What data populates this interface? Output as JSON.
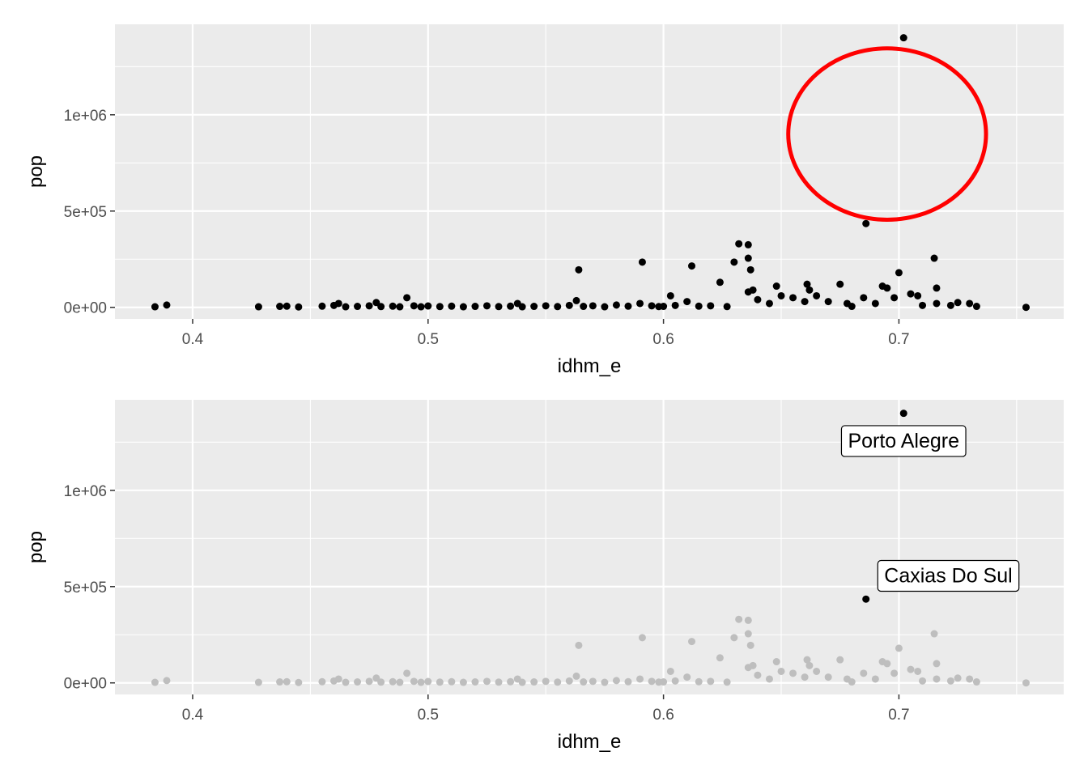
{
  "chart_data": [
    {
      "type": "scatter",
      "title": "",
      "xlabel": "idhm_e",
      "ylabel": "pop",
      "xlim": [
        0.367,
        0.77
      ],
      "ylim": [
        -60000,
        1470000
      ],
      "x_ticks": [
        0.4,
        0.5,
        0.6,
        0.7
      ],
      "x_tick_labels": [
        "0.4",
        "0.5",
        "0.6",
        "0.7"
      ],
      "y_ticks": [
        0,
        500000,
        1000000
      ],
      "y_tick_labels": [
        "0e+00",
        "5e+05",
        "1e+06"
      ],
      "grid": true,
      "point_color": "#000000",
      "annotation_ring": {
        "color": "#ff0000",
        "cx": 0.695,
        "cy": 900000,
        "rx": 0.042,
        "ry": 445000
      },
      "points": [
        [
          0.384,
          3000
        ],
        [
          0.389,
          12000
        ],
        [
          0.428,
          3000
        ],
        [
          0.437,
          5000
        ],
        [
          0.44,
          6000
        ],
        [
          0.445,
          2000
        ],
        [
          0.455,
          6000
        ],
        [
          0.46,
          10000
        ],
        [
          0.462,
          20000
        ],
        [
          0.465,
          3000
        ],
        [
          0.47,
          5000
        ],
        [
          0.475,
          8000
        ],
        [
          0.478,
          25000
        ],
        [
          0.48,
          4000
        ],
        [
          0.485,
          6000
        ],
        [
          0.488,
          3000
        ],
        [
          0.491,
          50000
        ],
        [
          0.494,
          8000
        ],
        [
          0.497,
          3000
        ],
        [
          0.5,
          7000
        ],
        [
          0.505,
          4000
        ],
        [
          0.51,
          6000
        ],
        [
          0.515,
          3000
        ],
        [
          0.52,
          5000
        ],
        [
          0.525,
          8000
        ],
        [
          0.53,
          4000
        ],
        [
          0.535,
          6000
        ],
        [
          0.538,
          20000
        ],
        [
          0.54,
          3000
        ],
        [
          0.545,
          5000
        ],
        [
          0.55,
          8000
        ],
        [
          0.555,
          4000
        ],
        [
          0.56,
          10000
        ],
        [
          0.563,
          35000
        ],
        [
          0.564,
          195000
        ],
        [
          0.566,
          5000
        ],
        [
          0.57,
          8000
        ],
        [
          0.575,
          3000
        ],
        [
          0.58,
          12000
        ],
        [
          0.585,
          6000
        ],
        [
          0.59,
          20000
        ],
        [
          0.591,
          235000
        ],
        [
          0.595,
          8000
        ],
        [
          0.598,
          4000
        ],
        [
          0.6,
          5000
        ],
        [
          0.603,
          60000
        ],
        [
          0.605,
          10000
        ],
        [
          0.61,
          30000
        ],
        [
          0.612,
          215000
        ],
        [
          0.615,
          6000
        ],
        [
          0.62,
          8000
        ],
        [
          0.624,
          130000
        ],
        [
          0.627,
          4000
        ],
        [
          0.63,
          235000
        ],
        [
          0.632,
          330000
        ],
        [
          0.636,
          325000
        ],
        [
          0.636,
          255000
        ],
        [
          0.637,
          195000
        ],
        [
          0.636,
          80000
        ],
        [
          0.638,
          90000
        ],
        [
          0.64,
          40000
        ],
        [
          0.645,
          20000
        ],
        [
          0.648,
          110000
        ],
        [
          0.65,
          60000
        ],
        [
          0.655,
          50000
        ],
        [
          0.66,
          30000
        ],
        [
          0.661,
          120000
        ],
        [
          0.662,
          90000
        ],
        [
          0.665,
          60000
        ],
        [
          0.67,
          30000
        ],
        [
          0.675,
          120000
        ],
        [
          0.678,
          20000
        ],
        [
          0.68,
          5000
        ],
        [
          0.685,
          50000
        ],
        [
          0.686,
          435000
        ],
        [
          0.69,
          20000
        ],
        [
          0.693,
          110000
        ],
        [
          0.695,
          100000
        ],
        [
          0.698,
          50000
        ],
        [
          0.7,
          180000
        ],
        [
          0.702,
          1400000
        ],
        [
          0.705,
          70000
        ],
        [
          0.708,
          60000
        ],
        [
          0.71,
          10000
        ],
        [
          0.715,
          255000
        ],
        [
          0.716,
          100000
        ],
        [
          0.716,
          20000
        ],
        [
          0.722,
          10000
        ],
        [
          0.725,
          25000
        ],
        [
          0.73,
          20000
        ],
        [
          0.733,
          5000
        ],
        [
          0.754,
          0
        ]
      ]
    },
    {
      "type": "scatter",
      "title": "",
      "xlabel": "idhm_e",
      "ylabel": "pop",
      "xlim": [
        0.367,
        0.77
      ],
      "ylim": [
        -60000,
        1470000
      ],
      "x_ticks": [
        0.4,
        0.5,
        0.6,
        0.7
      ],
      "x_tick_labels": [
        "0.4",
        "0.5",
        "0.6",
        "0.7"
      ],
      "y_ticks": [
        0,
        500000,
        1000000
      ],
      "y_tick_labels": [
        "0e+00",
        "5e+05",
        "1e+06"
      ],
      "grid": true,
      "point_color": "#bebebe",
      "highlight_color": "#000000",
      "highlights": [
        {
          "label": "Porto Alegre",
          "x": 0.702,
          "y": 1400000,
          "label_x": 0.702,
          "label_y": 1260000
        },
        {
          "label": "Caxias Do Sul",
          "x": 0.686,
          "y": 435000,
          "label_x": 0.721,
          "label_y": 560000
        }
      ],
      "points_ref": 0
    }
  ]
}
